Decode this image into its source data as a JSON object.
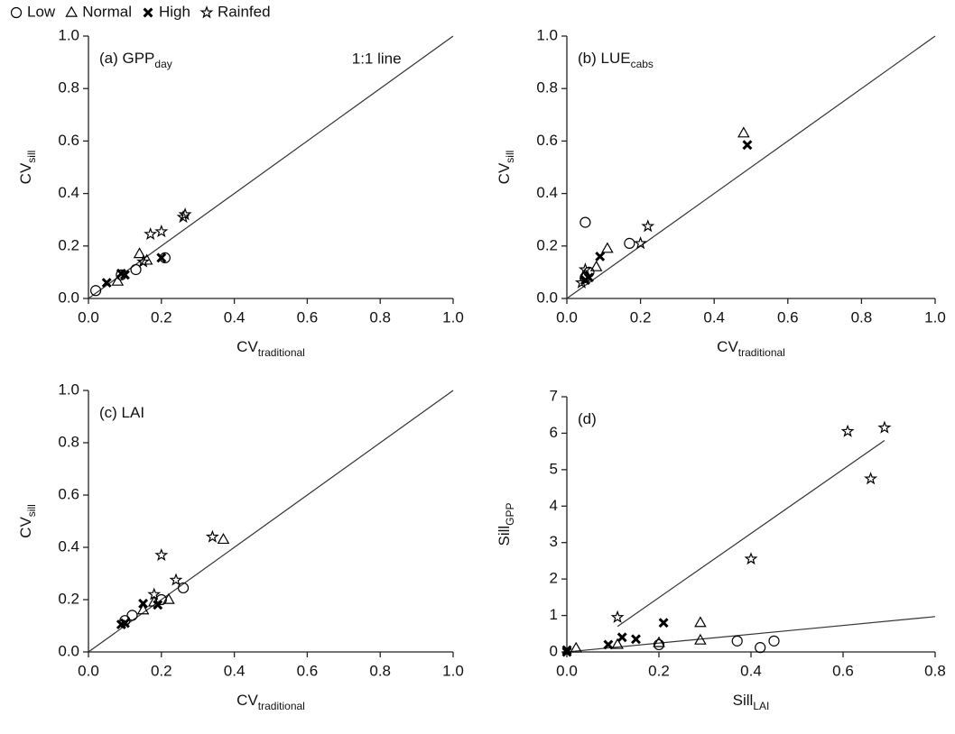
{
  "chart_data": [
    {
      "type": "scatter",
      "title": "(a) GPP",
      "title_sub": "day",
      "annotation": "1:1 line",
      "xlabel": "CV",
      "xlabel_sub": "traditional",
      "ylabel": "CV",
      "ylabel_sub": "sill",
      "xlim": [
        0,
        1
      ],
      "ylim": [
        0,
        1
      ],
      "xticks": [
        {
          "value": 0,
          "label": "0.0"
        },
        0.2,
        0.4,
        0.6,
        0.8,
        {
          "value": 1,
          "label": "1.0"
        }
      ],
      "yticks": [
        {
          "value": 0,
          "label": "0.0"
        },
        0.2,
        0.4,
        0.6,
        0.8,
        {
          "value": 1,
          "label": "1.0"
        }
      ],
      "series": [
        {
          "name": "Low",
          "marker": "circle",
          "color": "#000",
          "x": [
            0.02,
            0.13,
            0.21,
            0.09
          ],
          "y": [
            0.03,
            0.11,
            0.155,
            0.09
          ]
        },
        {
          "name": "Normal",
          "marker": "triangle",
          "color": "#000",
          "x": [
            0.14,
            0.08,
            0.16
          ],
          "y": [
            0.17,
            0.065,
            0.145
          ]
        },
        {
          "name": "High",
          "marker": "x",
          "color": "#000",
          "x": [
            0.05,
            0.09,
            0.1,
            0.2
          ],
          "y": [
            0.06,
            0.095,
            0.09,
            0.155
          ]
        },
        {
          "name": "Rainfed",
          "marker": "star",
          "color": "#000",
          "x": [
            0.17,
            0.2,
            0.26,
            0.265,
            0.15
          ],
          "y": [
            0.245,
            0.255,
            0.31,
            0.32,
            0.14
          ]
        }
      ],
      "lines": [
        {
          "x": [
            0,
            1
          ],
          "y": [
            0,
            1
          ]
        }
      ]
    },
    {
      "type": "scatter",
      "title": "(b) LUE",
      "title_sub": "cabs",
      "xlabel": "CV",
      "xlabel_sub": "traditional",
      "ylabel": "CV",
      "ylabel_sub": "sill",
      "xlim": [
        0,
        1
      ],
      "ylim": [
        0,
        1
      ],
      "xticks": [
        {
          "value": 0,
          "label": "0.0"
        },
        0.2,
        0.4,
        0.6,
        0.8,
        {
          "value": 1,
          "label": "1.0"
        }
      ],
      "yticks": [
        {
          "value": 0,
          "label": "0.0"
        },
        0.2,
        0.4,
        0.6,
        0.8,
        {
          "value": 1,
          "label": "1.0"
        }
      ],
      "series": [
        {
          "name": "Low",
          "marker": "circle",
          "color": "#000",
          "x": [
            0.05,
            0.17,
            0.06,
            0.05
          ],
          "y": [
            0.29,
            0.21,
            0.1,
            0.08
          ]
        },
        {
          "name": "Normal",
          "marker": "triangle",
          "color": "#000",
          "x": [
            0.48,
            0.11,
            0.08,
            0.05
          ],
          "y": [
            0.63,
            0.19,
            0.12,
            0.09
          ]
        },
        {
          "name": "High",
          "marker": "x",
          "color": "#000",
          "x": [
            0.49,
            0.09,
            0.05,
            0.06
          ],
          "y": [
            0.585,
            0.16,
            0.07,
            0.08
          ]
        },
        {
          "name": "Rainfed",
          "marker": "star",
          "color": "#000",
          "x": [
            0.22,
            0.2,
            0.05,
            0.04
          ],
          "y": [
            0.275,
            0.21,
            0.11,
            0.06
          ]
        }
      ],
      "lines": [
        {
          "x": [
            0,
            1
          ],
          "y": [
            0,
            1
          ]
        }
      ]
    },
    {
      "type": "scatter",
      "title": "(c) LAI",
      "xlabel": "CV",
      "xlabel_sub": "traditional",
      "ylabel": "CV",
      "ylabel_sub": "sill",
      "xlim": [
        0,
        1
      ],
      "ylim": [
        0,
        1
      ],
      "xticks": [
        {
          "value": 0,
          "label": "0.0"
        },
        0.2,
        0.4,
        0.6,
        0.8,
        {
          "value": 1,
          "label": "1.0"
        }
      ],
      "yticks": [
        {
          "value": 0,
          "label": "0.0"
        },
        0.2,
        0.4,
        0.6,
        0.8,
        {
          "value": 1,
          "label": "1.0"
        }
      ],
      "series": [
        {
          "name": "Low",
          "marker": "circle",
          "color": "#000",
          "x": [
            0.26,
            0.12,
            0.2,
            0.1
          ],
          "y": [
            0.245,
            0.14,
            0.2,
            0.12
          ]
        },
        {
          "name": "Normal",
          "marker": "triangle",
          "color": "#000",
          "x": [
            0.37,
            0.22,
            0.15,
            0.18
          ],
          "y": [
            0.43,
            0.2,
            0.16,
            0.19
          ]
        },
        {
          "name": "High",
          "marker": "x",
          "color": "#000",
          "x": [
            0.09,
            0.1,
            0.15,
            0.19
          ],
          "y": [
            0.105,
            0.11,
            0.185,
            0.18
          ]
        },
        {
          "name": "Rainfed",
          "marker": "star",
          "color": "#000",
          "x": [
            0.34,
            0.2,
            0.24,
            0.18
          ],
          "y": [
            0.44,
            0.37,
            0.275,
            0.22
          ]
        }
      ],
      "lines": [
        {
          "x": [
            0,
            1
          ],
          "y": [
            0,
            1
          ]
        }
      ]
    },
    {
      "type": "scatter",
      "title": "(d)",
      "xlabel": "Sill",
      "xlabel_sub": "LAI",
      "ylabel": "Sill",
      "ylabel_sub": "GPP",
      "xlim": [
        0,
        0.8
      ],
      "ylim": [
        0,
        7
      ],
      "xticks": [
        {
          "value": 0,
          "label": "0.0"
        },
        0.2,
        0.4,
        0.6,
        0.8
      ],
      "yticks": [
        0,
        1,
        2,
        3,
        4,
        5,
        6,
        7
      ],
      "series": [
        {
          "name": "Low",
          "marker": "circle",
          "color": "#000",
          "x": [
            0.37,
            0.42,
            0.45,
            0.2
          ],
          "y": [
            0.3,
            0.12,
            0.3,
            0.2
          ]
        },
        {
          "name": "Normal",
          "marker": "triangle",
          "color": "#000",
          "x": [
            0.29,
            0.29,
            0.2,
            0.02,
            0.11
          ],
          "y": [
            0.8,
            0.32,
            0.25,
            0.1,
            0.2
          ]
        },
        {
          "name": "High",
          "marker": "x",
          "color": "#000",
          "x": [
            0,
            0.09,
            0.12,
            0.15,
            0.21,
            0
          ],
          "y": [
            0,
            0.2,
            0.4,
            0.35,
            0.8,
            0.05
          ]
        },
        {
          "name": "Rainfed",
          "marker": "star",
          "color": "#000",
          "x": [
            0.61,
            0.69,
            0.66,
            0.4,
            0.11
          ],
          "y": [
            6.05,
            6.15,
            4.75,
            2.55,
            0.95
          ]
        }
      ],
      "lines": [
        {
          "x": [
            0.11,
            0.69
          ],
          "y": [
            0.7,
            5.8
          ]
        },
        {
          "x": [
            0,
            0.8
          ],
          "y": [
            0,
            0.97
          ]
        }
      ]
    }
  ]
}
